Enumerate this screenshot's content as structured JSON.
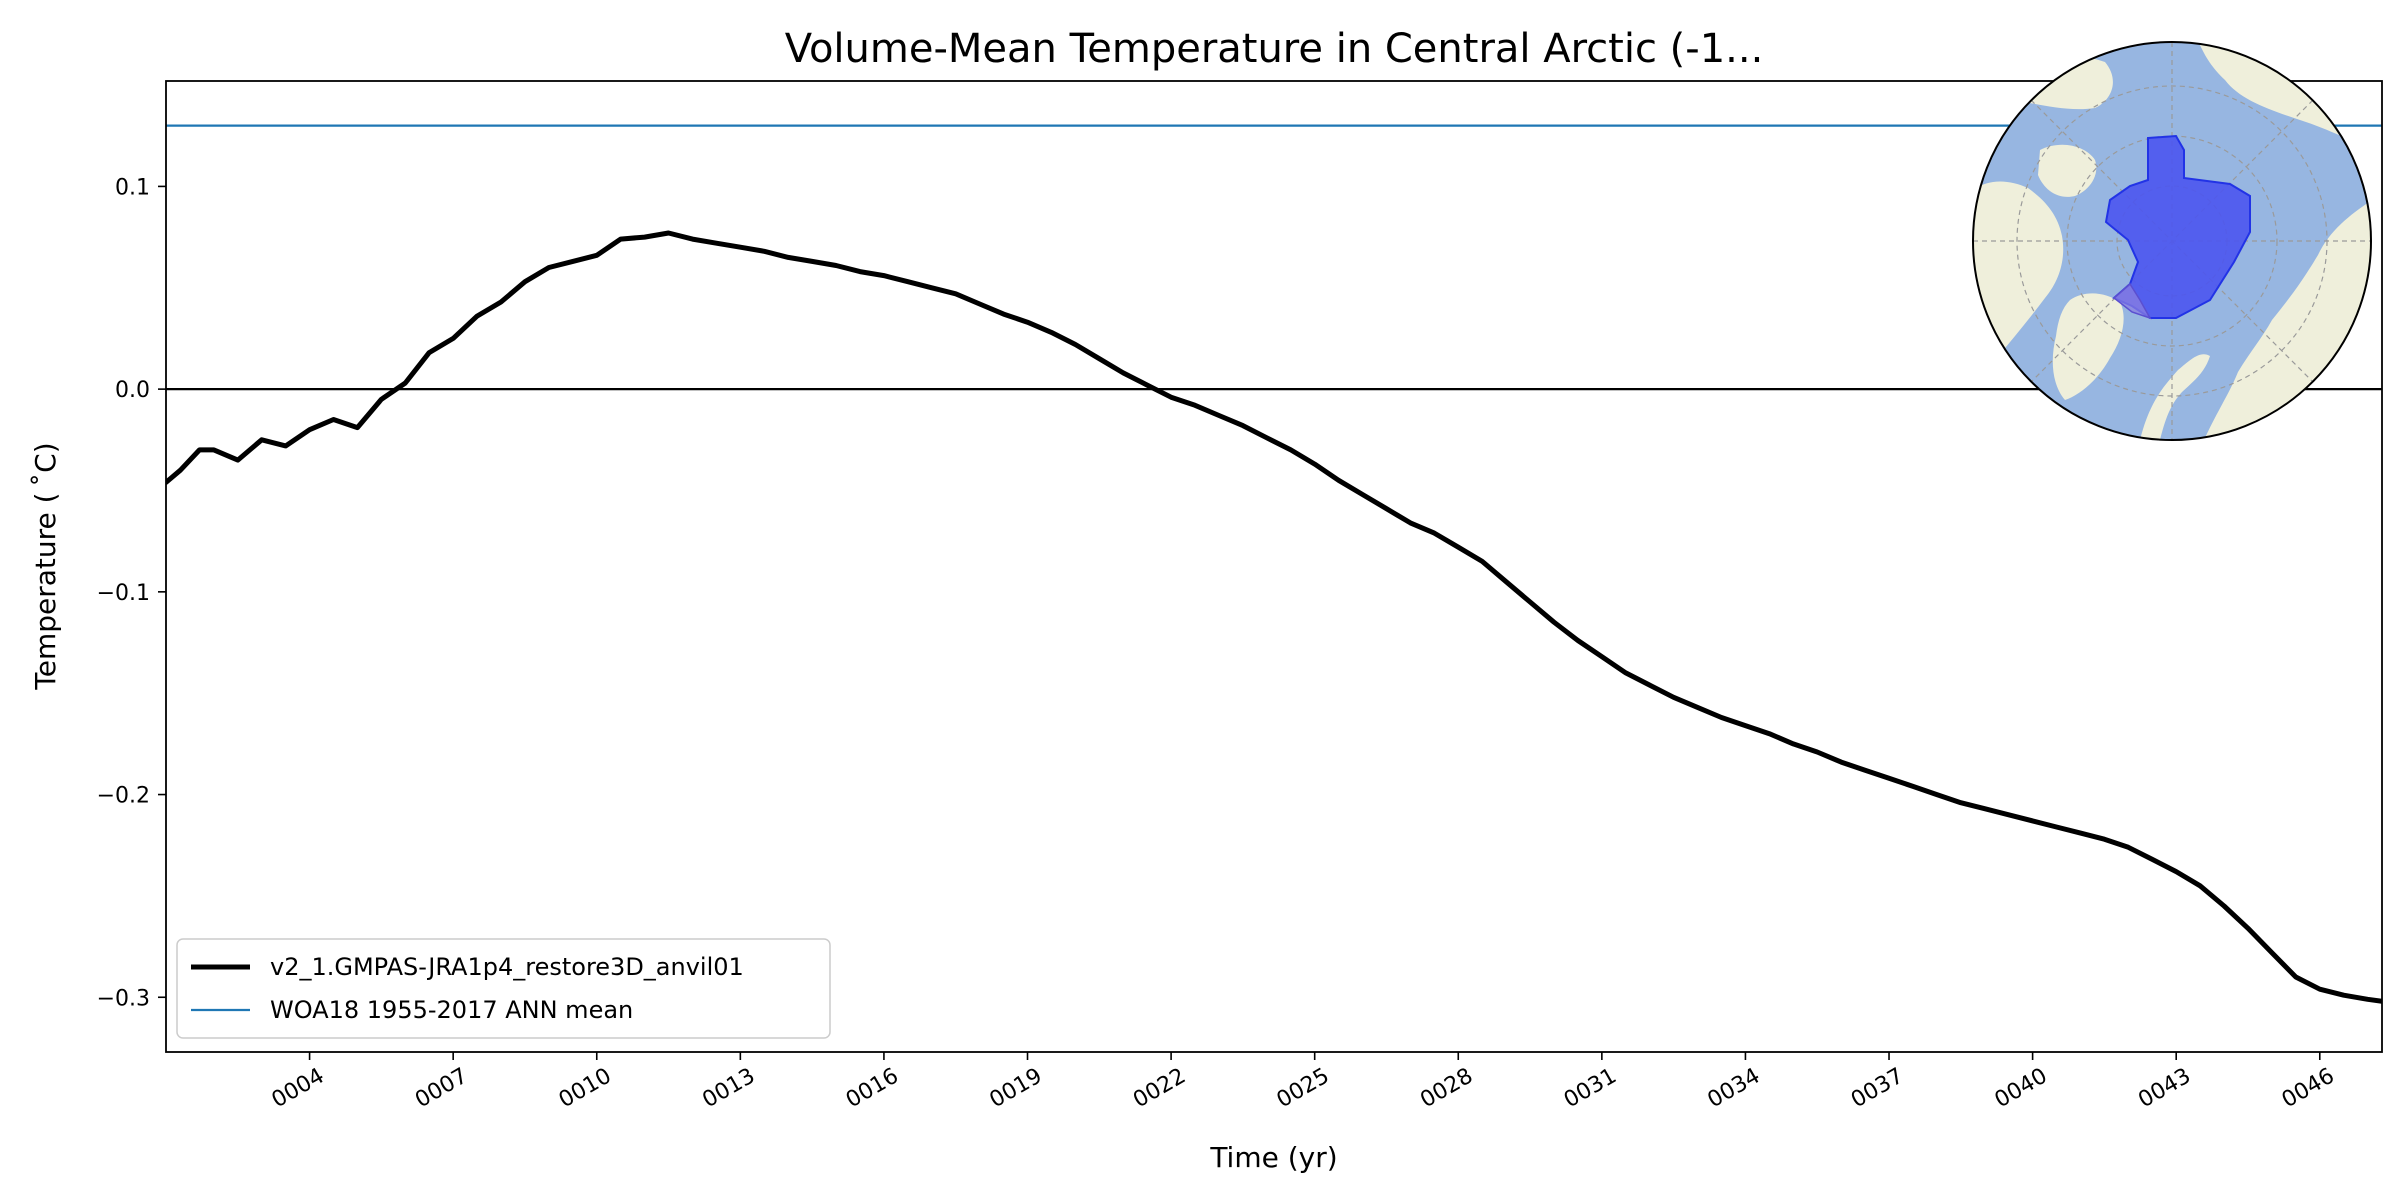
{
  "chart_data": {
    "type": "line",
    "title": "Volume-Mean Temperature in Central Arctic (-1...",
    "xlabel": "Time (yr)",
    "ylabel": "Temperature ($^\\circ$C)",
    "ylabel_display": "Temperature ( ˚C)",
    "xlim": [
      1.0,
      47.3
    ],
    "ylim": [
      -0.327,
      0.152
    ],
    "grid": false,
    "legend_position": "lower-left",
    "x_ticks": [
      4,
      7,
      10,
      13,
      16,
      19,
      22,
      25,
      28,
      31,
      34,
      37,
      40,
      43,
      46
    ],
    "x_tick_labels": [
      "0004",
      "0007",
      "0010",
      "0013",
      "0016",
      "0019",
      "0022",
      "0025",
      "0028",
      "0031",
      "0034",
      "0037",
      "0040",
      "0043",
      "0046"
    ],
    "y_ticks": [
      0.1,
      0.0,
      -0.1,
      -0.2,
      -0.3
    ],
    "y_tick_labels": [
      "0.1",
      "0.0",
      "−0.1",
      "−0.2",
      "−0.3"
    ],
    "zero_line": 0.0,
    "series": [
      {
        "name": "v2_1.GMPAS-JRA1p4_restore3D_anvil01",
        "color": "#000000",
        "style": "thick-solid",
        "x": [
          1.0,
          1.3,
          1.7,
          2.0,
          2.5,
          3.0,
          3.5,
          4.0,
          4.5,
          5.0,
          5.5,
          6.0,
          6.5,
          7.0,
          7.5,
          8.0,
          8.5,
          9.0,
          9.5,
          10.0,
          10.5,
          11.0,
          11.5,
          12.0,
          12.5,
          13.0,
          13.5,
          14.0,
          14.5,
          15.0,
          15.5,
          16.0,
          16.5,
          17.0,
          17.5,
          18.0,
          18.5,
          19.0,
          19.5,
          20.0,
          20.5,
          21.0,
          21.5,
          22.0,
          22.5,
          23.0,
          23.5,
          24.0,
          24.5,
          25.0,
          25.5,
          26.0,
          26.5,
          27.0,
          27.5,
          28.0,
          28.5,
          29.0,
          29.5,
          30.0,
          30.5,
          31.0,
          31.5,
          32.0,
          32.5,
          33.0,
          33.5,
          34.0,
          34.5,
          35.0,
          35.5,
          36.0,
          36.5,
          37.0,
          37.5,
          38.0,
          38.5,
          39.0,
          39.5,
          40.0,
          40.5,
          41.0,
          41.5,
          42.0,
          42.5,
          43.0,
          43.5,
          44.0,
          44.5,
          45.0,
          45.5,
          46.0,
          46.5,
          47.0,
          47.3
        ],
        "y": [
          -0.046,
          -0.04,
          -0.03,
          -0.03,
          -0.035,
          -0.025,
          -0.028,
          -0.02,
          -0.015,
          -0.019,
          -0.005,
          0.003,
          0.018,
          0.025,
          0.036,
          0.043,
          0.053,
          0.06,
          0.063,
          0.066,
          0.074,
          0.075,
          0.077,
          0.074,
          0.072,
          0.07,
          0.068,
          0.065,
          0.063,
          0.061,
          0.058,
          0.056,
          0.053,
          0.05,
          0.047,
          0.042,
          0.037,
          0.033,
          0.028,
          0.022,
          0.015,
          0.008,
          0.002,
          -0.004,
          -0.008,
          -0.013,
          -0.018,
          -0.024,
          -0.03,
          -0.037,
          -0.045,
          -0.052,
          -0.059,
          -0.066,
          -0.071,
          -0.078,
          -0.085,
          -0.095,
          -0.105,
          -0.115,
          -0.124,
          -0.132,
          -0.14,
          -0.146,
          -0.152,
          -0.157,
          -0.162,
          -0.166,
          -0.17,
          -0.175,
          -0.179,
          -0.184,
          -0.188,
          -0.192,
          -0.196,
          -0.2,
          -0.204,
          -0.207,
          -0.21,
          -0.213,
          -0.216,
          -0.219,
          -0.222,
          -0.226,
          -0.232,
          -0.238,
          -0.245,
          -0.255,
          -0.266,
          -0.278,
          -0.29,
          -0.296,
          -0.299,
          -0.301,
          -0.302
        ]
      },
      {
        "name": "WOA18 1955-2017 ANN mean",
        "color": "#1f77b4",
        "style": "thin-solid",
        "y": [
          0.13
        ]
      }
    ]
  },
  "inset_map": {
    "description_label": "Central Arctic region",
    "ocean_color": "#97b6e1",
    "land_color": "#efefdb",
    "region_color": "#4b55f0",
    "region_edge_color": "#2233e6",
    "gridline_color": "#9a9a9a"
  }
}
